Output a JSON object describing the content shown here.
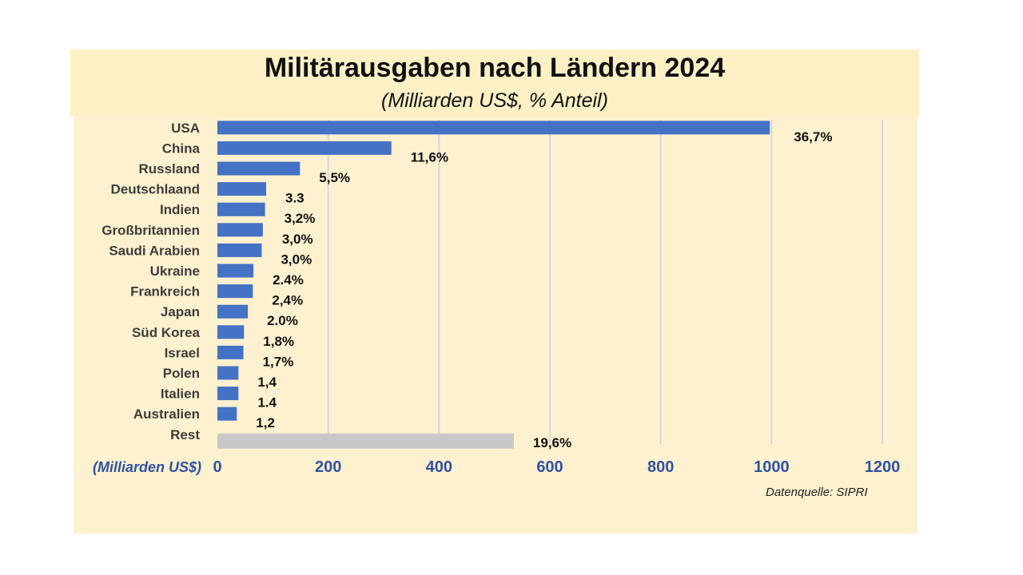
{
  "chart_data": {
    "type": "bar",
    "orientation": "horizontal",
    "title": "Militärausgaben nach Ländern 2024",
    "subtitle": "(Milliarden US$, % Anteil)",
    "xlabel": "(Milliarden US$)",
    "source": "Datenquelle: SIPRI",
    "xlim": [
      0,
      1200
    ],
    "xticks": [
      "0",
      "200",
      "400",
      "600",
      "800",
      "1000",
      "1200"
    ],
    "grid": true,
    "categories": [
      "USA",
      "China",
      "Russland",
      "Deutschlaand",
      "Indien",
      "Großbritannien",
      "Saudi Arabien",
      "Ukraine",
      "Frankreich",
      "Japan",
      "Süd Korea",
      "Israel",
      "Polen",
      "Italien",
      "Australien",
      "Rest"
    ],
    "values": [
      997,
      314,
      149,
      88,
      86,
      82,
      80,
      65,
      64,
      55,
      48,
      47,
      38,
      38,
      35,
      535
    ],
    "labels": [
      "36,7%",
      "11,6%",
      "5,5%",
      "3.3",
      "3,2%",
      "3,0%",
      "3,0%",
      "2.4%",
      "2,4%",
      "2.0%",
      "1,8%",
      "1,7%",
      "1,4",
      "1.4",
      "1,2",
      "19,6%"
    ],
    "colors": {
      "bar": "#4472c4",
      "rest": "#c8c8c8",
      "grid": "#d7d8dc",
      "axis_text": "#2f52a5",
      "category_text": "#3d3d3d",
      "label_text": "#111111"
    }
  }
}
